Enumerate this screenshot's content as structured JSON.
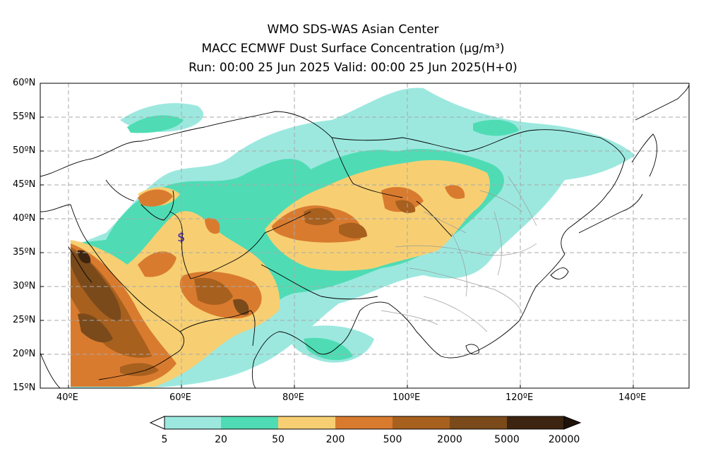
{
  "title": {
    "line1": "WMO SDS-WAS Asian Center",
    "line2": "MACC ECMWF Dust Surface Concentration (μg/m³)",
    "line3": "Run: 00:00 25 Jun 2025    Valid: 00:00 25 Jun 2025(H+0)"
  },
  "lat_labels": [
    "60ºN",
    "55ºN",
    "50ºN",
    "45ºN",
    "40ºN",
    "35ºN",
    "30ºN",
    "25ºN",
    "20ºN",
    "15ºN"
  ],
  "lon_labels": [
    "40ºE",
    "60ºE",
    "80ºE",
    "100ºE",
    "120ºE",
    "140ºE"
  ],
  "marker": "$",
  "colorbar": {
    "levels": [
      "5",
      "20",
      "50",
      "200",
      "500",
      "2000",
      "5000",
      "20000"
    ],
    "colors": [
      "#9ce8df",
      "#4fdcb4",
      "#f7cf72",
      "#d97b2f",
      "#a8601e",
      "#7a4a1b",
      "#3d2410"
    ],
    "under_color": "#ffffff",
    "over_color": "#1f1208"
  },
  "palette": {
    "land_border": "#000000",
    "china_province": "#9a9a9a",
    "grid": "#a8a8a8"
  }
}
